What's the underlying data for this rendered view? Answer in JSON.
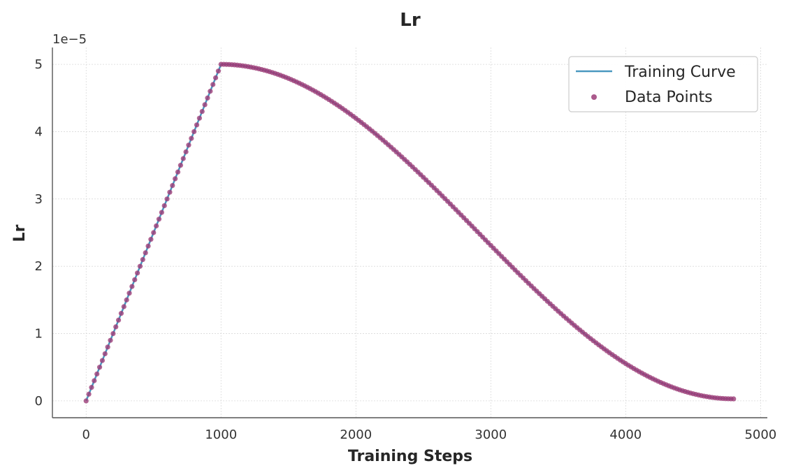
{
  "chart_data": {
    "type": "line",
    "title": "Lr",
    "xlabel": "Training Steps",
    "ylabel": "Lr",
    "y_offset_label": "1e−5",
    "xlim": [
      -250,
      5050
    ],
    "ylim": [
      -0.25,
      5.25
    ],
    "x_ticks": [
      0,
      1000,
      2000,
      3000,
      4000,
      5000
    ],
    "x_tick_labels": [
      "0",
      "1000",
      "2000",
      "3000",
      "4000",
      "5000"
    ],
    "y_ticks": [
      0,
      1,
      2,
      3,
      4,
      5
    ],
    "y_tick_labels": [
      "0",
      "1",
      "2",
      "3",
      "4",
      "5"
    ],
    "grid": true,
    "legend_position": "top-right",
    "series": [
      {
        "name": "Training Curve",
        "kind": "line",
        "color": "#4a98c0",
        "schedule": {
          "warmup_steps": 1000,
          "total_steps": 4800,
          "peak_lr": 5.0,
          "final_lr": 0.03,
          "step_interval": 20
        }
      },
      {
        "name": "Data Points",
        "kind": "scatter",
        "color": "#9c3d78"
      }
    ]
  }
}
